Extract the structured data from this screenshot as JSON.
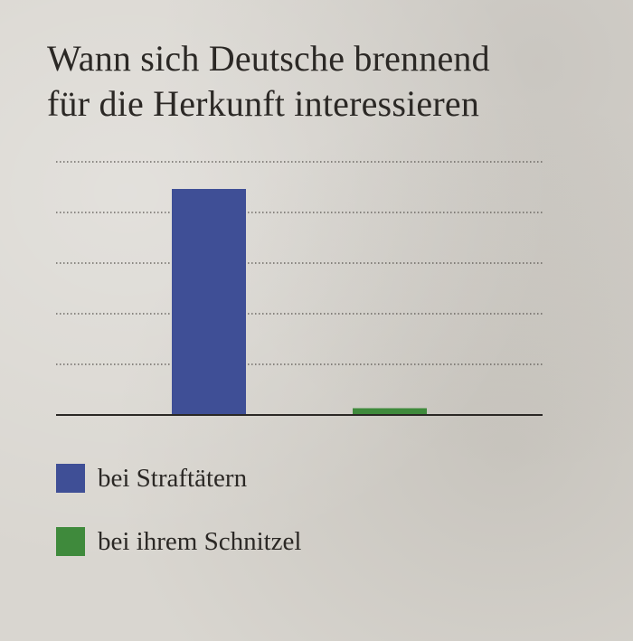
{
  "title_line1": "Wann sich Deutsche brennend",
  "title_line2": "für die Herkunft interessieren",
  "chart_data": {
    "type": "bar",
    "categories": [
      "bei Straftätern",
      "bei ihrem Schnitzel"
    ],
    "values": [
      100,
      3
    ],
    "ylim": [
      0,
      112
    ],
    "grid": true,
    "colors": [
      "#3f4f96",
      "#3f8a3c"
    ]
  },
  "legend": {
    "items": [
      {
        "label": "bei Straftätern",
        "color": "#3f4f96"
      },
      {
        "label": "bei ihrem Schnitzel",
        "color": "#3f8a3c"
      }
    ],
    "placement": "bottom-left"
  }
}
